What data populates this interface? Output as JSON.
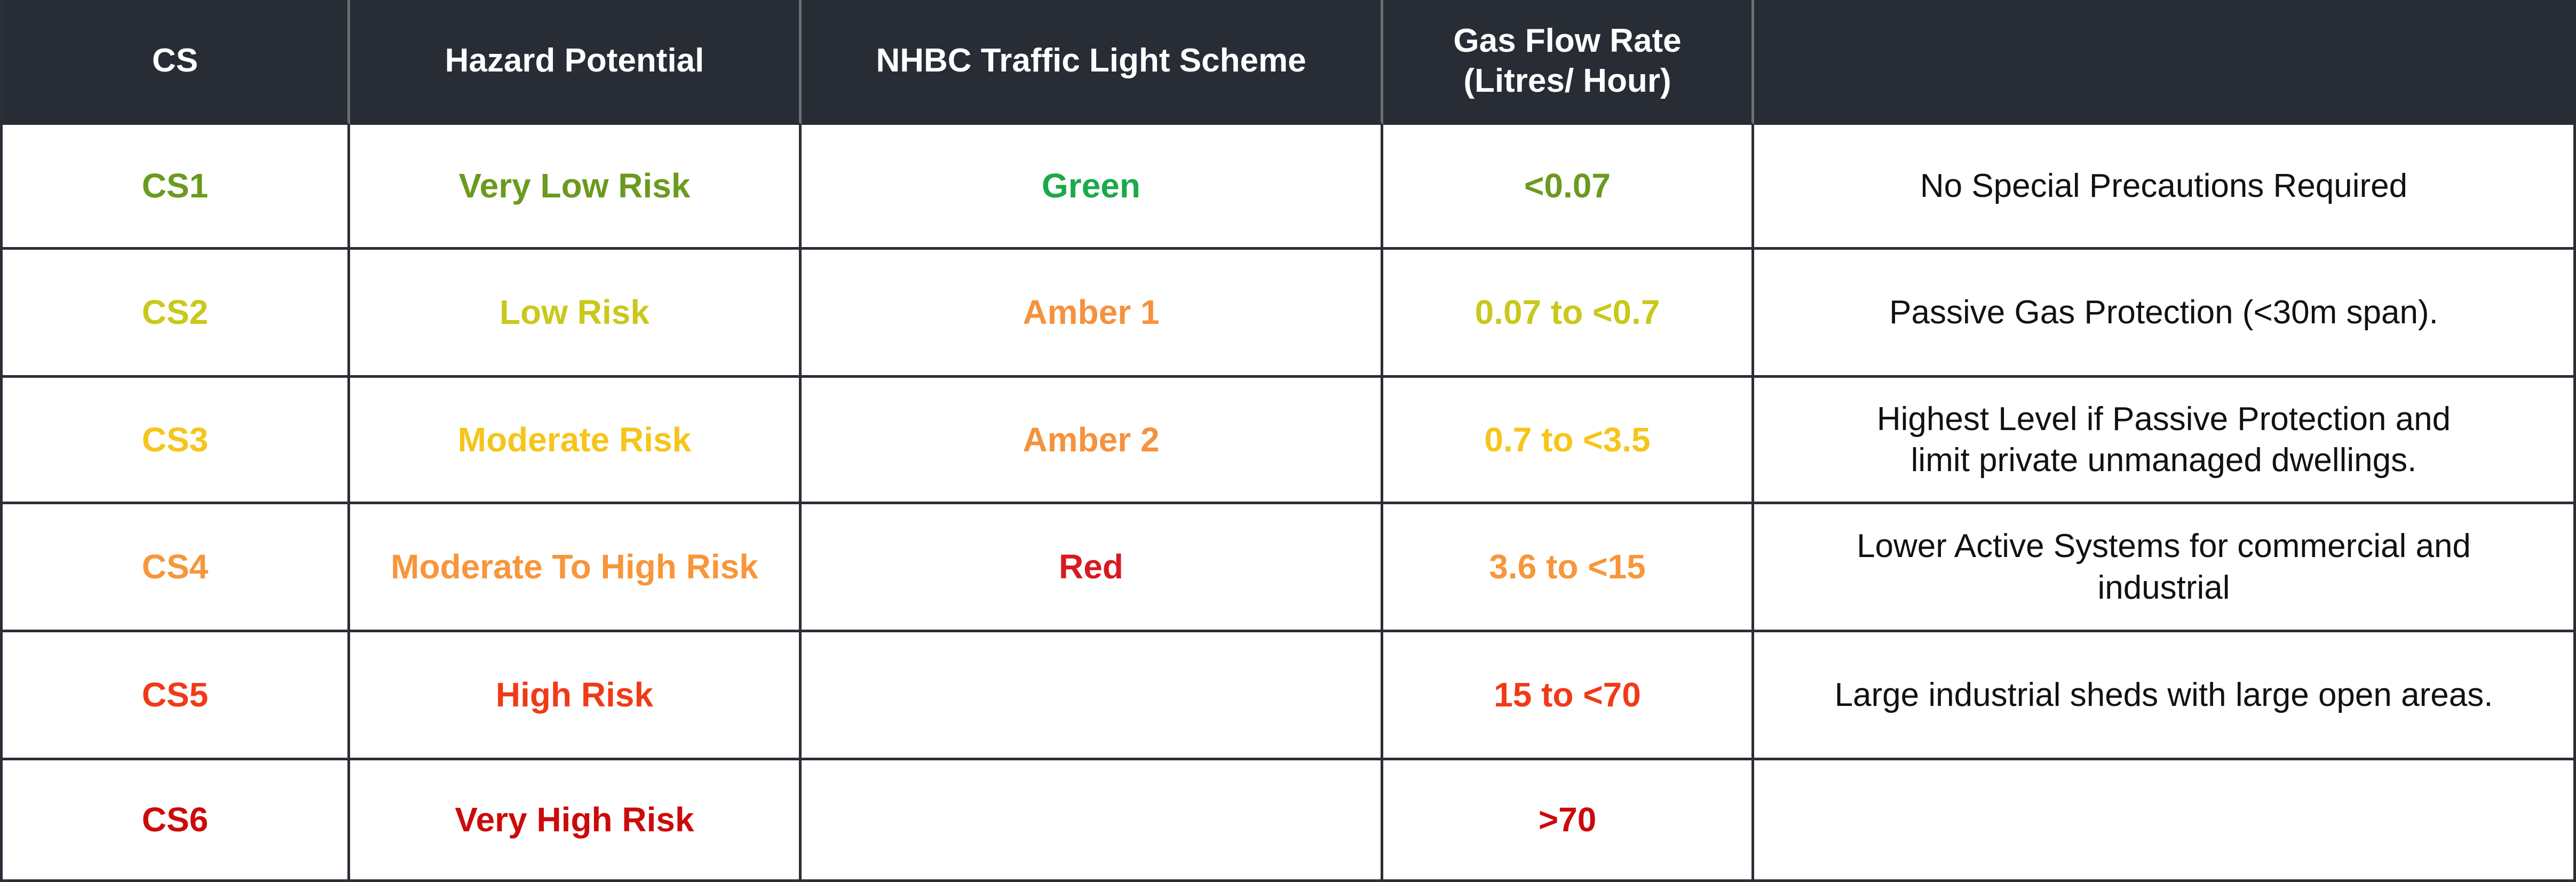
{
  "table": {
    "header": [
      [
        "CS"
      ],
      [
        "Hazard Potential"
      ],
      [
        "NHBC Traffic Light Scheme"
      ],
      [
        "Gas Flow Rate",
        "(Litres/ Hour)"
      ]
    ],
    "rows": [
      {
        "cs": "CS1",
        "hazard": "Very Low Risk",
        "color": "#6a9a1f",
        "traffic_light": {
          "text": "Green",
          "color": "#1aaa4a"
        },
        "flow": "<0.07",
        "notes": [
          "No Special Precautions Required"
        ]
      },
      {
        "cs": "CS2",
        "hazard": "Low Risk",
        "color": "#c9c81c",
        "traffic_light": {
          "text": "Amber 1",
          "color": "#f5923e"
        },
        "flow": "0.07 to <0.7",
        "notes": [
          "Passive Gas Protection (<30m span)."
        ]
      },
      {
        "cs": "CS3",
        "hazard": "Moderate Risk",
        "color": "#f6c51a",
        "traffic_light": {
          "text": "Amber 2",
          "color": "#f5923e"
        },
        "flow": "0.7 to <3.5",
        "notes": [
          "Highest Level if Passive Protection and",
          "limit private unmanaged dwellings."
        ]
      },
      {
        "cs": "CS4",
        "hazard": "Moderate To High Risk",
        "color": "#f7963a",
        "traffic_light": {
          "text": "Red",
          "color": "#d71920"
        },
        "flow": "3.6 to <15",
        "notes": [
          "Lower Active Systems for commercial and",
          "industrial"
        ]
      },
      {
        "cs": "CS5",
        "hazard": "High Risk",
        "color": "#f03a17",
        "flow": "15 to <70",
        "notes": [
          "Large industrial sheds with large open areas."
        ]
      },
      {
        "cs": "CS6",
        "hazard": "Very High Risk",
        "color": "#cc0a0a",
        "flow": ">70"
      }
    ]
  }
}
